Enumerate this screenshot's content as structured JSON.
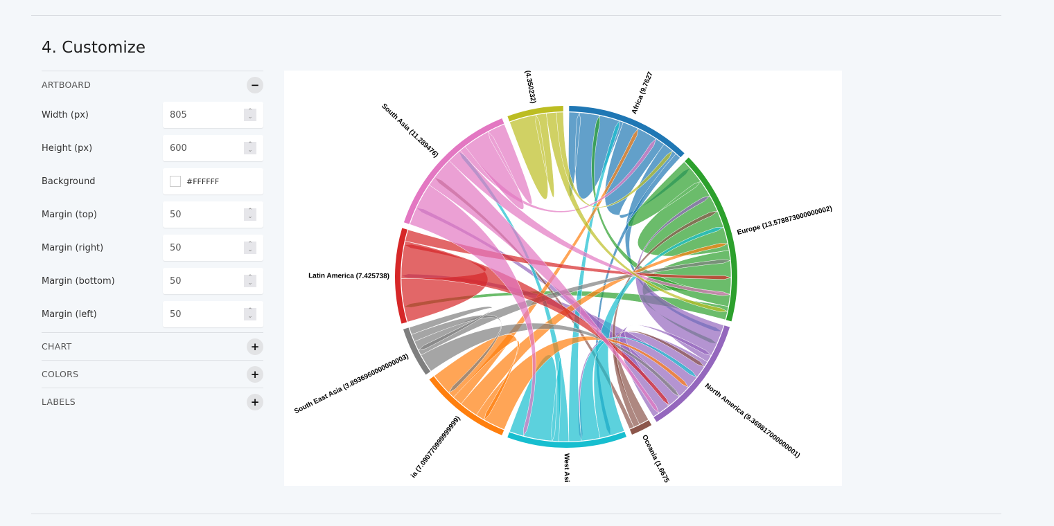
{
  "section_title": "4. Customize",
  "artboard": {
    "label": "ARTBOARD",
    "toggle": "−",
    "fields": [
      {
        "label": "Width (px)",
        "value": "805"
      },
      {
        "label": "Height (px)",
        "value": "600"
      },
      {
        "label": "Background",
        "value": "#FFFFFF"
      },
      {
        "label": "Margin (top)",
        "value": "50"
      },
      {
        "label": "Margin (right)",
        "value": "50"
      },
      {
        "label": "Margin (bottom)",
        "value": "50"
      },
      {
        "label": "Margin (left)",
        "value": "50"
      }
    ]
  },
  "sections": [
    {
      "label": "CHART",
      "toggle": "+"
    },
    {
      "label": "COLORS",
      "toggle": "+"
    },
    {
      "label": "LABELS",
      "toggle": "+"
    }
  ],
  "chart_data": {
    "type": "chord",
    "groups": [
      {
        "label": "Africa (9.7627",
        "value": 9.7627,
        "color": "#1f77b4"
      },
      {
        "label": "Europe (13.578873000000002)",
        "value": 13.578873,
        "color": "#2ca02c"
      },
      {
        "label": "North America (9.369817000000001)",
        "value": 9.369817,
        "color": "#9467bd"
      },
      {
        "label": "Oceania (1.6675",
        "value": 1.6675,
        "color": "#8c564b"
      },
      {
        "label": "West Asi",
        "value": 9.3,
        "color": "#17becf"
      },
      {
        "label": "ia (7.090770999999999)",
        "value": 7.090771,
        "color": "#ff7f0e"
      },
      {
        "label": "South East Asia (3.8936960000000003)",
        "value": 3.893696,
        "color": "#7f7f7f"
      },
      {
        "label": "Latin America (7.425738)",
        "value": 7.425738,
        "color": "#d62728"
      },
      {
        "label": "South Asia (11.289476)",
        "value": 11.289476,
        "color": "#e377c2"
      },
      {
        "label": "(4.350232)",
        "value": 4.350232,
        "color": "#bcbd22"
      }
    ],
    "flows": [
      [
        0,
        0,
        4.4
      ],
      [
        0,
        1,
        3.7
      ],
      [
        0,
        2,
        1.2
      ],
      [
        0,
        4,
        0.46
      ],
      [
        1,
        1,
        8.0
      ],
      [
        1,
        2,
        3.5
      ],
      [
        1,
        0,
        1.0
      ],
      [
        1,
        7,
        1.08
      ],
      [
        2,
        1,
        3.2
      ],
      [
        2,
        4,
        1.5
      ],
      [
        2,
        7,
        2.0
      ],
      [
        2,
        8,
        1.2
      ],
      [
        2,
        2,
        1.47
      ],
      [
        3,
        2,
        0.8
      ],
      [
        3,
        1,
        0.5
      ],
      [
        3,
        8,
        0.37
      ],
      [
        4,
        1,
        2.0
      ],
      [
        4,
        2,
        1.5
      ],
      [
        4,
        0,
        1.0
      ],
      [
        4,
        8,
        0.8
      ],
      [
        4,
        4,
        4.0
      ],
      [
        5,
        2,
        2.5
      ],
      [
        5,
        1,
        1.5
      ],
      [
        5,
        0,
        0.8
      ],
      [
        5,
        5,
        2.29
      ],
      [
        6,
        2,
        1.5
      ],
      [
        6,
        1,
        1.2
      ],
      [
        6,
        5,
        0.6
      ],
      [
        6,
        6,
        0.59
      ],
      [
        7,
        7,
        3.5
      ],
      [
        7,
        2,
        3.0
      ],
      [
        7,
        1,
        0.93
      ],
      [
        8,
        4,
        3.5
      ],
      [
        8,
        2,
        2.5
      ],
      [
        8,
        1,
        1.2
      ],
      [
        8,
        0,
        0.5
      ],
      [
        8,
        8,
        3.59
      ],
      [
        9,
        9,
        3.0
      ],
      [
        9,
        1,
        0.8
      ],
      [
        9,
        0,
        0.55
      ]
    ]
  }
}
